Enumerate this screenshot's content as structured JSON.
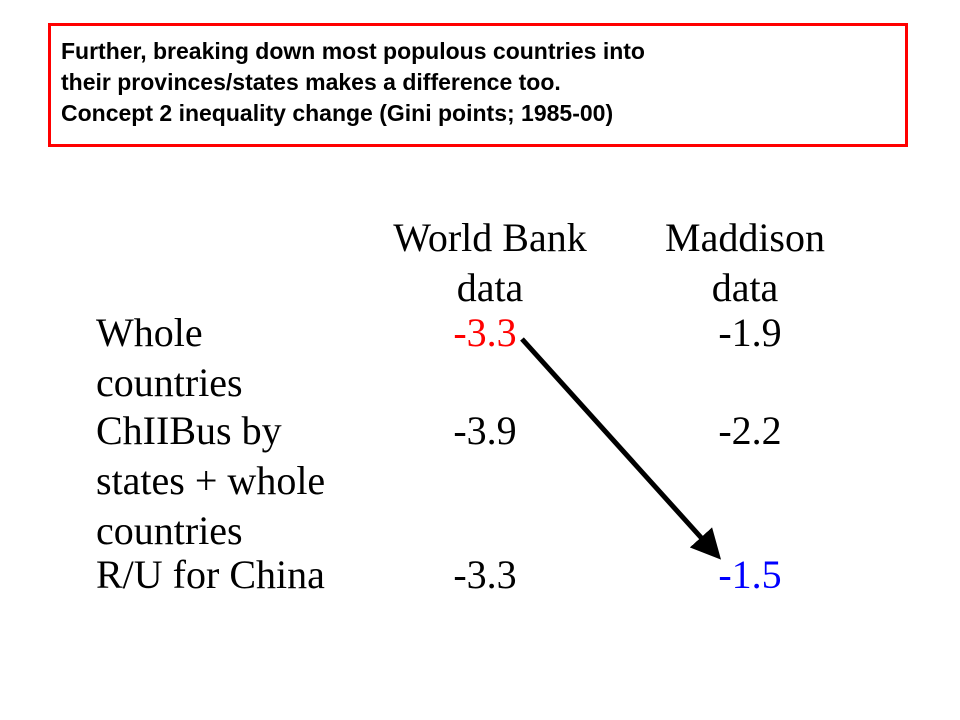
{
  "title": {
    "lines": [
      "Further, breaking down most populous countries into",
      "their provinces/states makes a difference too.",
      "Concept 2 inequality change (Gini points; 1985-00)"
    ],
    "border_color": "#ff0000"
  },
  "table": {
    "columns": [
      {
        "lines": [
          "World Bank",
          "data"
        ]
      },
      {
        "lines": [
          "Maddison",
          "data"
        ]
      }
    ],
    "rows": [
      {
        "label_lines": [
          "Whole",
          "countries"
        ],
        "world_bank": "-3.3",
        "maddison": "-1.9",
        "world_bank_color": "#ff0000",
        "maddison_color": "#000000"
      },
      {
        "label_lines": [
          "ChIIBus by",
          "states + whole",
          "countries"
        ],
        "world_bank": "-3.9",
        "maddison": "-2.2",
        "world_bank_color": "#000000",
        "maddison_color": "#000000"
      },
      {
        "label_lines": [
          "R/U for China"
        ],
        "world_bank": "-3.3",
        "maddison": "-1.5",
        "world_bank_color": "#000000",
        "maddison_color": "#0000ff"
      }
    ]
  },
  "arrow": {
    "from": "Whole countries, World Bank data",
    "to": "R/U for China, Maddison data",
    "color": "#000000"
  }
}
